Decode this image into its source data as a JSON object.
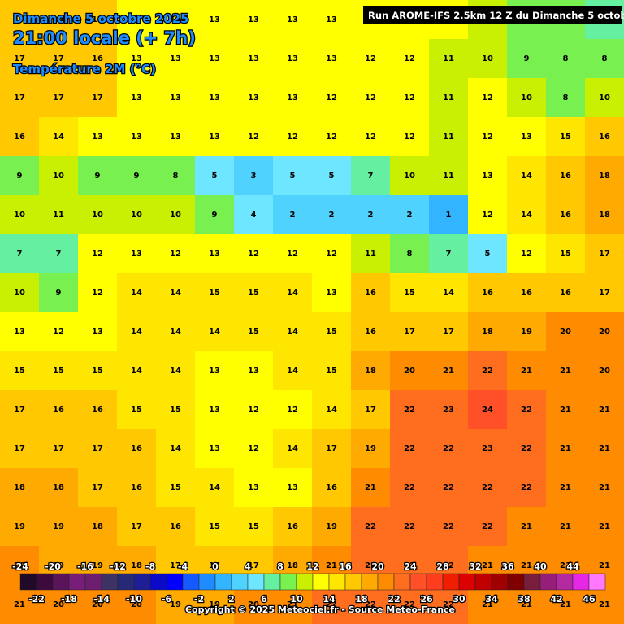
{
  "header": {
    "date": "Dimanche 5 octobre 2025",
    "time": "21:00 locale (+ 7h)",
    "parameter": "Température 2M (°C)",
    "run": "Run AROME-IFS 2.5km 12 Z du Dimanche 5 octobre 2025"
  },
  "grid": {
    "values": [
      [
        17,
        17,
        17,
        13,
        13,
        13,
        13,
        13,
        13,
        13,
        12,
        12,
        11,
        9,
        8,
        7
      ],
      [
        17,
        17,
        16,
        13,
        13,
        13,
        13,
        13,
        13,
        12,
        12,
        11,
        10,
        9,
        8,
        8
      ],
      [
        17,
        17,
        17,
        13,
        13,
        13,
        13,
        13,
        12,
        12,
        12,
        11,
        12,
        10,
        8,
        10
      ],
      [
        16,
        14,
        13,
        13,
        13,
        13,
        12,
        12,
        12,
        12,
        12,
        11,
        12,
        13,
        15,
        16
      ],
      [
        9,
        10,
        9,
        9,
        8,
        5,
        3,
        5,
        5,
        7,
        10,
        11,
        13,
        14,
        16,
        18
      ],
      [
        10,
        11,
        10,
        10,
        10,
        9,
        4,
        2,
        2,
        2,
        2,
        1,
        12,
        14,
        16,
        18
      ],
      [
        7,
        7,
        12,
        13,
        12,
        13,
        12,
        12,
        12,
        11,
        8,
        7,
        5,
        12,
        15,
        17
      ],
      [
        10,
        9,
        12,
        14,
        14,
        15,
        15,
        14,
        13,
        16,
        15,
        14,
        16,
        16,
        16,
        17
      ],
      [
        13,
        12,
        13,
        14,
        14,
        14,
        15,
        14,
        15,
        16,
        17,
        17,
        18,
        19,
        20,
        20
      ],
      [
        15,
        15,
        15,
        14,
        14,
        13,
        13,
        14,
        15,
        18,
        20,
        21,
        22,
        21,
        21,
        20
      ],
      [
        17,
        16,
        16,
        15,
        15,
        13,
        12,
        12,
        14,
        17,
        22,
        23,
        24,
        22,
        21,
        21
      ],
      [
        17,
        17,
        17,
        16,
        14,
        13,
        12,
        14,
        17,
        19,
        22,
        22,
        23,
        22,
        21,
        21
      ],
      [
        18,
        18,
        17,
        16,
        15,
        14,
        13,
        13,
        16,
        21,
        22,
        22,
        22,
        22,
        21,
        21
      ],
      [
        19,
        19,
        18,
        17,
        16,
        15,
        15,
        16,
        19,
        22,
        22,
        22,
        22,
        21,
        21,
        21
      ],
      [
        20,
        19,
        19,
        18,
        17,
        17,
        17,
        18,
        21,
        22,
        22,
        22,
        21,
        21,
        21,
        21
      ],
      [
        21,
        20,
        20,
        20,
        19,
        19,
        20,
        21,
        22,
        22,
        22,
        22,
        21,
        21,
        21,
        21
      ]
    ]
  },
  "legend": {
    "colors": [
      "#200a28",
      "#3c0a3c",
      "#5a145a",
      "#781e78",
      "#6e1e6e",
      "#3c3264",
      "#282878",
      "#1e1e96",
      "#0a0ac8",
      "#0000ff",
      "#145aff",
      "#1e8cff",
      "#32b4ff",
      "#50d2ff",
      "#6ee6ff",
      "#64f0a0",
      "#78f050",
      "#c8f000",
      "#ffff00",
      "#ffe600",
      "#ffc800",
      "#ffaa00",
      "#ff8c00",
      "#ff6e1e",
      "#ff5028",
      "#ff3c1e",
      "#f01e00",
      "#dc0000",
      "#c00000",
      "#a00000",
      "#800000",
      "#781e3c",
      "#961e78",
      "#b428a0",
      "#e628e6",
      "#ff78ff"
    ],
    "top_labels": [
      -24,
      -20,
      -16,
      -12,
      -8,
      -4,
      0,
      4,
      8,
      12,
      16,
      20,
      24,
      28,
      32,
      36,
      40,
      44
    ],
    "bottom_labels": [
      -22,
      -18,
      -14,
      -10,
      -6,
      -2,
      2,
      6,
      10,
      14,
      18,
      22,
      26,
      30,
      34,
      38,
      42,
      46
    ]
  },
  "footer": {
    "copyright": "Copyright © 2025 Meteociel.fr - Source Meteo-France"
  }
}
